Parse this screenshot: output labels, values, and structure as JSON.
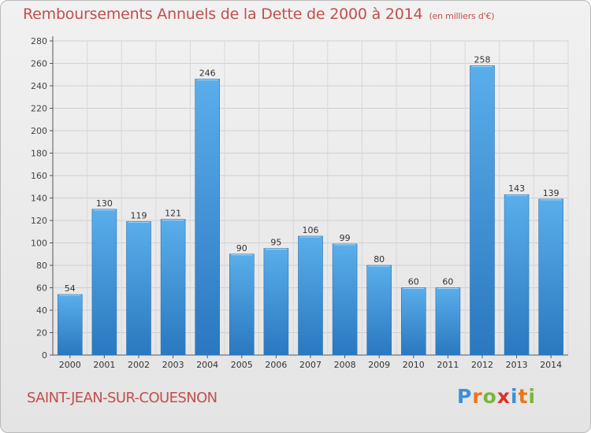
{
  "header": {
    "title": "Remboursements Annuels de la Dette de 2000 à 2014",
    "unit": "(en milliers d'€)"
  },
  "footer": {
    "commune": "SAINT-JEAN-SUR-COUESNON",
    "brand": "Proxiti",
    "brand_letters": [
      "P",
      "r",
      "o",
      "x",
      "i",
      "t",
      "i"
    ],
    "brand_colors": [
      "#3d8fd6",
      "#e8761c",
      "#7ab63f",
      "#d9322b",
      "#3d8fd6",
      "#e8761c",
      "#7ab63f"
    ]
  },
  "chart_data": {
    "type": "bar",
    "title": "Remboursements Annuels de la Dette de 2000 à 2014",
    "xlabel": "",
    "ylabel": "",
    "categories": [
      "2000",
      "2001",
      "2002",
      "2003",
      "2004",
      "2005",
      "2006",
      "2007",
      "2008",
      "2009",
      "2010",
      "2011",
      "2012",
      "2013",
      "2014"
    ],
    "values": [
      54,
      130,
      119,
      121,
      246,
      90,
      95,
      106,
      99,
      80,
      60,
      60,
      258,
      143,
      139
    ],
    "ylim": [
      0,
      280
    ],
    "yticks": [
      0,
      20,
      40,
      60,
      80,
      100,
      120,
      140,
      160,
      180,
      200,
      220,
      240,
      260,
      280
    ],
    "grid": true,
    "bar_color": "#4a9fe0",
    "bar_color_dark": "#2f7fc6"
  }
}
